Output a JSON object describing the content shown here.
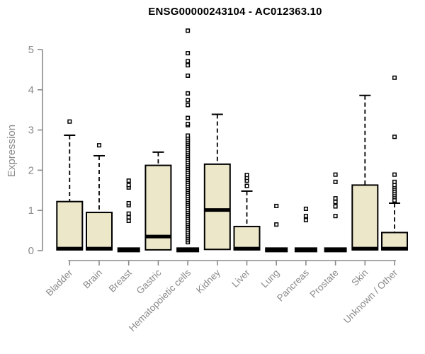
{
  "title": "ENSG00000243104 - AC012363.10",
  "chart_data": {
    "type": "boxplot",
    "title": "ENSG00000243104 - AC012363.10",
    "xlabel": "",
    "ylabel": "Expression",
    "ylim": [
      0,
      5.6
    ],
    "yticks": [
      0,
      1,
      2,
      3,
      4,
      5
    ],
    "grid": false,
    "legend": "none",
    "colors": {
      "box_fill": "#ede7c9",
      "box_stroke": "#000000",
      "median": "#000000",
      "outlier_stroke": "#000000",
      "axis": "#8a8a8a",
      "tick_label": "#8a8a8a",
      "title": "#000000"
    },
    "categories": [
      "Bladder",
      "Brain",
      "Breast",
      "Gastric",
      "Hematopoietic cells",
      "Kidney",
      "Liver",
      "Lung",
      "Pancreas",
      "Prostate",
      "Skin",
      "Unknown / Other"
    ],
    "series": [
      {
        "category": "Bladder",
        "q1": 0.02,
        "median": 0.05,
        "q3": 1.22,
        "whisker_low": 0,
        "whisker_high": 2.87,
        "outliers": [
          3.21
        ]
      },
      {
        "category": "Brain",
        "q1": 0.02,
        "median": 0.05,
        "q3": 0.95,
        "whisker_low": 0,
        "whisker_high": 2.36,
        "outliers": [
          2.62
        ]
      },
      {
        "category": "Breast",
        "q1": 0,
        "median": 0.02,
        "q3": 0.04,
        "whisker_low": 0,
        "whisker_high": 0.04,
        "outliers": [
          0.74,
          0.83,
          0.92,
          1.13,
          1.18,
          1.57,
          1.63,
          1.74
        ]
      },
      {
        "category": "Gastric",
        "q1": 0.02,
        "median": 0.35,
        "q3": 2.12,
        "whisker_low": 0,
        "whisker_high": 2.45,
        "outliers": []
      },
      {
        "category": "Hematopoietic cells",
        "q1": 0,
        "median": 0.02,
        "q3": 0.04,
        "whisker_low": 0,
        "whisker_high": 0.04,
        "outliers": [
          0.21,
          0.26,
          0.31,
          0.36,
          0.41,
          0.46,
          0.51,
          0.56,
          0.61,
          0.66,
          0.71,
          0.76,
          0.81,
          0.86,
          0.91,
          0.96,
          1.01,
          1.06,
          1.11,
          1.16,
          1.21,
          1.26,
          1.31,
          1.36,
          1.41,
          1.46,
          1.51,
          1.56,
          1.61,
          1.66,
          1.71,
          1.76,
          1.81,
          1.86,
          1.91,
          1.96,
          2.01,
          2.06,
          2.11,
          2.16,
          2.21,
          2.26,
          2.31,
          2.36,
          2.41,
          2.46,
          2.51,
          2.56,
          2.61,
          2.66,
          2.71,
          2.76,
          2.81,
          2.86,
          3.12,
          3.15,
          3.3,
          3.62,
          3.74,
          3.91,
          4.35,
          4.61,
          4.71,
          4.91,
          5.47
        ]
      },
      {
        "category": "Kidney",
        "q1": 0.03,
        "median": 1.01,
        "q3": 2.15,
        "whisker_low": 0,
        "whisker_high": 3.39,
        "outliers": []
      },
      {
        "category": "Liver",
        "q1": 0.02,
        "median": 0.05,
        "q3": 0.6,
        "whisker_low": 0,
        "whisker_high": 1.48,
        "outliers": [
          1.61,
          1.74,
          1.81,
          1.88
        ]
      },
      {
        "category": "Lung",
        "q1": 0,
        "median": 0.02,
        "q3": 0.04,
        "whisker_low": 0,
        "whisker_high": 0.04,
        "outliers": [
          0.65,
          1.11
        ]
      },
      {
        "category": "Pancreas",
        "q1": 0,
        "median": 0.02,
        "q3": 0.04,
        "whisker_low": 0,
        "whisker_high": 0.04,
        "outliers": [
          0.76,
          0.86,
          1.04
        ]
      },
      {
        "category": "Prostate",
        "q1": 0,
        "median": 0.02,
        "q3": 0.04,
        "whisker_low": 0,
        "whisker_high": 0.04,
        "outliers": [
          0.86,
          1.1,
          1.21,
          1.3,
          1.71,
          1.89
        ]
      },
      {
        "category": "Skin",
        "q1": 0.02,
        "median": 0.05,
        "q3": 1.63,
        "whisker_low": 0,
        "whisker_high": 3.86,
        "outliers": []
      },
      {
        "category": "Unknown / Other",
        "q1": 0.02,
        "median": 0.05,
        "q3": 0.45,
        "whisker_low": 0,
        "whisker_high": 1.18,
        "outliers": [
          1.25,
          1.33,
          1.38,
          1.43,
          1.48,
          1.53,
          1.58,
          1.63,
          1.71,
          1.89,
          2.83,
          4.3
        ]
      }
    ]
  }
}
